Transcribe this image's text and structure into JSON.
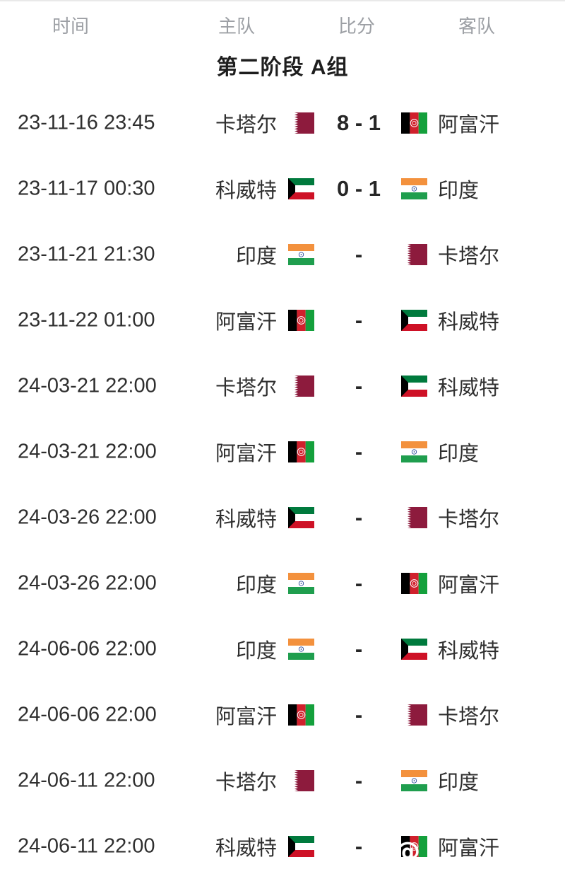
{
  "header": {
    "time_label": "时间",
    "home_label": "主队",
    "score_label": "比分",
    "away_label": "客队",
    "text_color": "#9da0a5"
  },
  "group_title": "第二阶段 A组",
  "colors": {
    "row_text": "#2f2f2f",
    "score_text": "#262626",
    "title_text": "#1e1e1e",
    "header_text": "#9da0a5",
    "top_edge": "#e9e9e9"
  },
  "flags": {
    "qatar": {
      "name": "卡塔尔",
      "colors": {
        "maroon": "#8d1b3d",
        "white": "#ffffff"
      }
    },
    "kuwait": {
      "name": "科威特",
      "colors": {
        "green": "#007a3d",
        "white": "#ffffff",
        "red": "#ce1126",
        "black": "#000000"
      }
    },
    "india": {
      "name": "印度",
      "colors": {
        "saffron": "#f3913d",
        "white": "#ffffff",
        "green": "#1f9e4e",
        "navy": "#2a4b9b"
      }
    },
    "afghanistan": {
      "name": "阿富汗",
      "colors": {
        "black": "#000000",
        "red": "#d0202c",
        "green": "#14a03c",
        "white": "#ffffff"
      }
    }
  },
  "matches": [
    {
      "time": "23-11-16 23:45",
      "home": {
        "name": "卡塔尔",
        "flag": "qatar"
      },
      "score": "8 - 1",
      "away": {
        "name": "阿富汗",
        "flag": "afghanistan"
      }
    },
    {
      "time": "23-11-17 00:30",
      "home": {
        "name": "科威特",
        "flag": "kuwait"
      },
      "score": "0 - 1",
      "away": {
        "name": "印度",
        "flag": "india"
      }
    },
    {
      "time": "23-11-21 21:30",
      "home": {
        "name": "印度",
        "flag": "india"
      },
      "score": "-",
      "away": {
        "name": "卡塔尔",
        "flag": "qatar"
      }
    },
    {
      "time": "23-11-22 01:00",
      "home": {
        "name": "阿富汗",
        "flag": "afghanistan"
      },
      "score": "-",
      "away": {
        "name": "科威特",
        "flag": "kuwait"
      }
    },
    {
      "time": "24-03-21 22:00",
      "home": {
        "name": "卡塔尔",
        "flag": "qatar"
      },
      "score": "-",
      "away": {
        "name": "科威特",
        "flag": "kuwait"
      }
    },
    {
      "time": "24-03-21 22:00",
      "home": {
        "name": "阿富汗",
        "flag": "afghanistan"
      },
      "score": "-",
      "away": {
        "name": "印度",
        "flag": "india"
      }
    },
    {
      "time": "24-03-26 22:00",
      "home": {
        "name": "科威特",
        "flag": "kuwait"
      },
      "score": "-",
      "away": {
        "name": "卡塔尔",
        "flag": "qatar"
      }
    },
    {
      "time": "24-03-26 22:00",
      "home": {
        "name": "印度",
        "flag": "india"
      },
      "score": "-",
      "away": {
        "name": "阿富汗",
        "flag": "afghanistan"
      }
    },
    {
      "time": "24-06-06 22:00",
      "home": {
        "name": "印度",
        "flag": "india"
      },
      "score": "-",
      "away": {
        "name": "科威特",
        "flag": "kuwait"
      }
    },
    {
      "time": "24-06-06 22:00",
      "home": {
        "name": "阿富汗",
        "flag": "afghanistan"
      },
      "score": "-",
      "away": {
        "name": "卡塔尔",
        "flag": "qatar"
      }
    },
    {
      "time": "24-06-11 22:00",
      "home": {
        "name": "卡塔尔",
        "flag": "qatar"
      },
      "score": "-",
      "away": {
        "name": "印度",
        "flag": "india"
      }
    },
    {
      "time": "24-06-11 22:00",
      "home": {
        "name": "科威特",
        "flag": "kuwait"
      },
      "score": "-",
      "away": {
        "name": "阿富汗",
        "flag": "afghanistan"
      },
      "watermark": true
    }
  ],
  "watermark": {
    "symbol": "@"
  }
}
